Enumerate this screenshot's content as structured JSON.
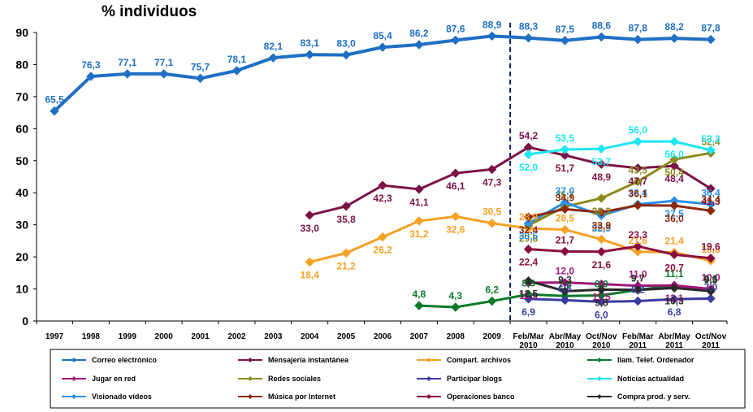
{
  "chart_data": {
    "type": "line",
    "title": "% individuos",
    "xlabel": "",
    "ylabel": "",
    "ylim": [
      0,
      90
    ],
    "yticks": [
      "0",
      "10",
      "20",
      "30",
      "40",
      "50",
      "60",
      "70",
      "80",
      "90"
    ],
    "categories": [
      [
        "1997"
      ],
      [
        "1998"
      ],
      [
        "1999"
      ],
      [
        "2000"
      ],
      [
        "2001"
      ],
      [
        "2002"
      ],
      [
        "2003"
      ],
      [
        "2004"
      ],
      [
        "2005"
      ],
      [
        "2006"
      ],
      [
        "2007"
      ],
      [
        "2008"
      ],
      [
        "2009"
      ],
      [
        "Feb/Mar",
        "2010"
      ],
      [
        "Abr/May",
        "2010"
      ],
      [
        "Oct/Nov",
        "2010"
      ],
      [
        "Feb/Mar",
        "2011"
      ],
      [
        "Abr/May",
        "2011"
      ],
      [
        "Oct/Nov",
        "2011"
      ]
    ],
    "divider_after_index": 12,
    "legend_position": "bottom",
    "series": [
      {
        "name": "Correo electrónico",
        "color": "#1F6FC5",
        "width": 4,
        "values": [
          65.5,
          76.3,
          77.1,
          77.1,
          75.7,
          78.1,
          82.1,
          83.1,
          83.0,
          85.4,
          86.2,
          87.6,
          88.9,
          88.3,
          87.5,
          88.6,
          87.8,
          88.2,
          87.8
        ],
        "labels": [
          "65,5",
          "76,3",
          "77,1",
          "77,1",
          "75,7",
          "78,1",
          "82,1",
          "83,1",
          "83,0",
          "85,4",
          "86,2",
          "87,6",
          "88,9",
          "88,3",
          "87,5",
          "88,6",
          "87,8",
          "88,2",
          "87,8"
        ]
      },
      {
        "name": "Mensajería instantánea",
        "color": "#7B1346",
        "width": 3,
        "values": [
          null,
          null,
          null,
          null,
          null,
          null,
          null,
          33.0,
          35.8,
          42.3,
          41.1,
          46.1,
          47.3,
          54.2,
          51.7,
          48.9,
          47.7,
          48.4,
          41.3
        ],
        "labels": [
          null,
          null,
          null,
          null,
          null,
          null,
          null,
          "33,0",
          "35,8",
          "42,3",
          "41,1",
          "46,1",
          "47,3",
          "54,2",
          "51,7",
          "48,9",
          "47,7",
          "48,4",
          "41,3"
        ]
      },
      {
        "name": "Compart. archivos",
        "color": "#F6A024",
        "width": 3,
        "values": [
          null,
          null,
          null,
          null,
          null,
          null,
          null,
          18.4,
          21.2,
          26.2,
          31.2,
          32.6,
          30.5,
          28.9,
          28.5,
          25.5,
          21.6,
          21.4,
          18.8
        ],
        "labels": [
          null,
          null,
          null,
          null,
          null,
          null,
          null,
          "18,4",
          "21,2",
          "26,2",
          "31,2",
          "32,6",
          "30,5",
          "28,9",
          "28,5",
          "25,5",
          "21,6",
          "21,4",
          "18,8"
        ]
      },
      {
        "name": "llam. Telef. Ordenador",
        "color": "#0A7A2A",
        "width": 3,
        "values": [
          null,
          null,
          null,
          null,
          null,
          null,
          null,
          null,
          null,
          null,
          4.8,
          4.3,
          6.2,
          8.3,
          7.8,
          8.0,
          9.7,
          11.1,
          9.6
        ],
        "labels": [
          null,
          null,
          null,
          null,
          null,
          null,
          null,
          null,
          null,
          null,
          "4,8",
          "4,3",
          "6,2",
          "8,3",
          "7,8",
          "8,0",
          "9,7",
          "11,1",
          "9,6"
        ]
      },
      {
        "name": "Jugar en red",
        "color": "#A0167A",
        "width": 3,
        "values": [
          null,
          null,
          null,
          null,
          null,
          null,
          null,
          null,
          null,
          null,
          null,
          null,
          null,
          11.9,
          12.0,
          11.5,
          11.0,
          11.1,
          10.0
        ],
        "labels": [
          null,
          null,
          null,
          null,
          null,
          null,
          null,
          null,
          null,
          null,
          null,
          null,
          null,
          "11,9",
          "12,0",
          "11,5",
          "11,0",
          "11,1",
          "10,0"
        ]
      },
      {
        "name": "Redes sociales",
        "color": "#8C8A1A",
        "width": 3,
        "values": [
          null,
          null,
          null,
          null,
          null,
          null,
          null,
          null,
          null,
          null,
          null,
          null,
          null,
          29.8,
          35.7,
          38.3,
          43.5,
          50.4,
          52.4
        ],
        "labels": [
          null,
          null,
          null,
          null,
          null,
          null,
          null,
          null,
          null,
          null,
          null,
          null,
          null,
          "29,8",
          "35,7",
          "38,3",
          "43,5",
          "50,4",
          "52,4"
        ]
      },
      {
        "name": "Participar blogs",
        "color": "#3A3AA0",
        "width": 3,
        "values": [
          null,
          null,
          null,
          null,
          null,
          null,
          null,
          null,
          null,
          null,
          null,
          null,
          null,
          6.9,
          6.5,
          6.0,
          6.2,
          6.8,
          7.0
        ],
        "labels": [
          null,
          null,
          null,
          null,
          null,
          null,
          null,
          null,
          null,
          null,
          null,
          null,
          null,
          "6,9",
          "6,5",
          "6,0",
          "6,2",
          "6,8",
          "7,0"
        ]
      },
      {
        "name": "Noticias actualidad",
        "color": "#1EE6F2",
        "width": 3,
        "values": [
          null,
          null,
          null,
          null,
          null,
          null,
          null,
          null,
          null,
          null,
          null,
          null,
          null,
          52.0,
          53.5,
          53.7,
          56.0,
          56.0,
          53.3
        ],
        "labels": [
          null,
          null,
          null,
          null,
          null,
          null,
          null,
          null,
          null,
          null,
          null,
          null,
          null,
          "52,0",
          "53,5",
          "53,7",
          "56,0",
          "56,0",
          "53,3"
        ]
      },
      {
        "name": "Visionado vídeos",
        "color": "#2A90E8",
        "width": 3,
        "values": [
          null,
          null,
          null,
          null,
          null,
          null,
          null,
          null,
          null,
          null,
          null,
          null,
          null,
          30.5,
          37.0,
          32.9,
          36.4,
          37.5,
          36.4
        ],
        "labels": [
          null,
          null,
          null,
          null,
          null,
          null,
          null,
          null,
          null,
          null,
          null,
          null,
          null,
          "30,5",
          "37,0",
          "32,9",
          "36,4",
          "37,5",
          "36,4"
        ]
      },
      {
        "name": "Música por Internet",
        "color": "#8B2A10",
        "width": 3,
        "values": [
          null,
          null,
          null,
          null,
          null,
          null,
          null,
          null,
          null,
          null,
          null,
          null,
          null,
          32.4,
          34.9,
          33.9,
          36.1,
          36.0,
          34.4
        ],
        "labels": [
          null,
          null,
          null,
          null,
          null,
          null,
          null,
          null,
          null,
          null,
          null,
          null,
          null,
          "32,4",
          "34,9",
          "33,9",
          "36,1",
          "36,0",
          "34,4"
        ]
      },
      {
        "name": "Operaciones banco",
        "color": "#8A0E3C",
        "width": 3,
        "values": [
          null,
          null,
          null,
          null,
          null,
          null,
          null,
          null,
          null,
          null,
          null,
          null,
          null,
          22.4,
          21.7,
          21.6,
          23.3,
          20.7,
          19.6
        ],
        "labels": [
          null,
          null,
          null,
          null,
          null,
          null,
          null,
          null,
          null,
          null,
          null,
          null,
          null,
          "22,4",
          "21,7",
          "21,6",
          "23,3",
          "20,7",
          "19,6"
        ]
      },
      {
        "name": "Compra prod. y serv.",
        "color": "#2A2A2A",
        "width": 3,
        "values": [
          null,
          null,
          null,
          null,
          null,
          null,
          null,
          null,
          null,
          null,
          null,
          null,
          null,
          12.5,
          9.3,
          9.8,
          9.7,
          10.3,
          9.3
        ],
        "labels": [
          null,
          null,
          null,
          null,
          null,
          null,
          null,
          null,
          null,
          null,
          null,
          null,
          null,
          "12,5",
          "9,3",
          "9,8",
          "9,7",
          "10,3",
          "9,3"
        ]
      }
    ]
  }
}
